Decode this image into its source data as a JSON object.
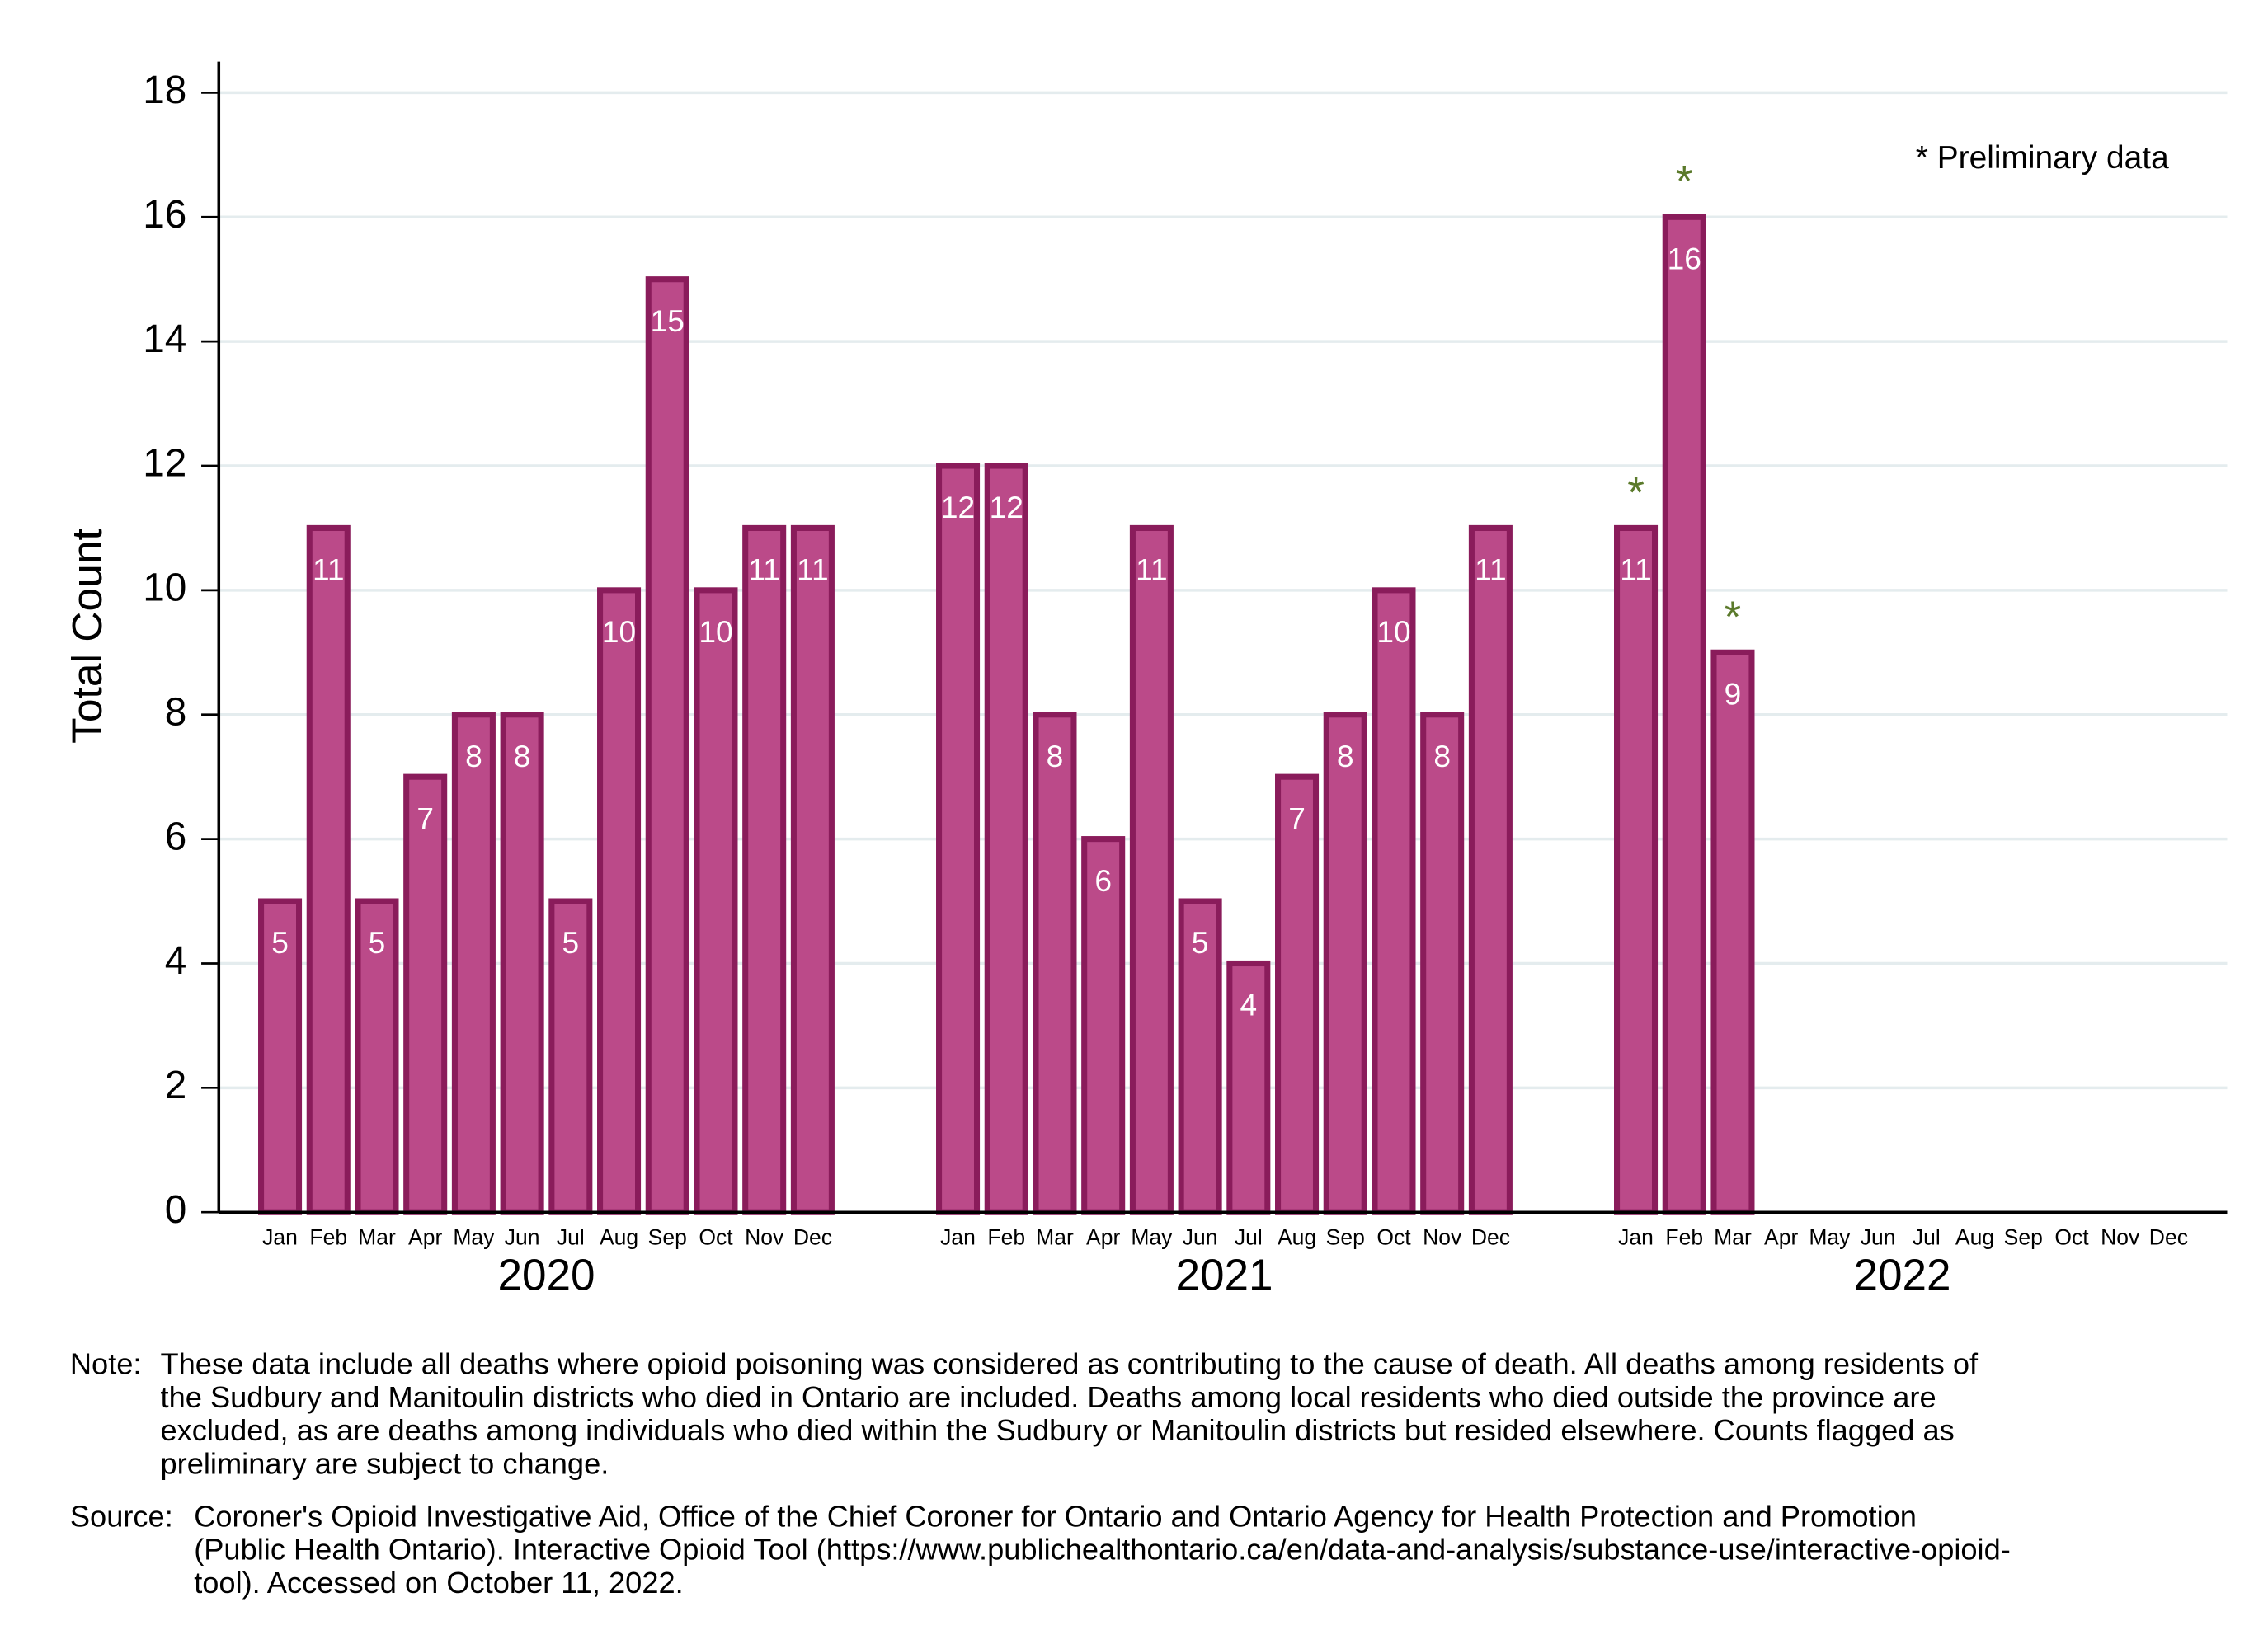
{
  "chart_data": {
    "type": "bar",
    "ylabel": "Total Count",
    "annotation": "* Preliminary data",
    "years": [
      "2020",
      "2021",
      "2022"
    ],
    "categories": [
      "Jan",
      "Feb",
      "Mar",
      "Apr",
      "May",
      "Jun",
      "Jul",
      "Aug",
      "Sep",
      "Oct",
      "Nov",
      "Dec",
      "Jan",
      "Feb",
      "Mar",
      "Apr",
      "May",
      "Jun",
      "Jul",
      "Aug",
      "Sep",
      "Oct",
      "Nov",
      "Dec",
      "Jan",
      "Feb",
      "Mar",
      "Apr",
      "May",
      "Jun",
      "Jul",
      "Aug",
      "Sep",
      "Oct",
      "Nov",
      "Dec"
    ],
    "values": [
      5,
      11,
      5,
      7,
      8,
      8,
      5,
      10,
      15,
      10,
      11,
      11,
      12,
      12,
      8,
      6,
      11,
      5,
      4,
      7,
      8,
      10,
      8,
      11,
      11,
      16,
      9,
      null,
      null,
      null,
      null,
      null,
      null,
      null,
      null,
      null
    ],
    "flags": [
      null,
      null,
      null,
      null,
      null,
      null,
      null,
      null,
      null,
      null,
      null,
      null,
      null,
      null,
      null,
      null,
      null,
      null,
      null,
      null,
      null,
      null,
      null,
      null,
      "*",
      "*",
      "*",
      null,
      null,
      null,
      null,
      null,
      null,
      null,
      null,
      null
    ],
    "color": "#bb4a89",
    "edge_color": "#8a1c5b",
    "flag_color": "#5b7a2b",
    "ylim": [
      0,
      18.5
    ],
    "yticks": [
      0,
      2,
      4,
      6,
      8,
      10,
      12,
      14,
      16,
      18
    ],
    "grid": true
  },
  "notes": [
    {
      "label": "Note:",
      "lines": [
        "These data include all deaths where opioid poisoning was considered as contributing to the cause of death. All deaths among residents of",
        "the Sudbury and Manitoulin districts who died in Ontario are included. Deaths among local residents who died outside the province are",
        "excluded, as are deaths among individuals who died within the Sudbury or Manitoulin districts but resided elsewhere. Counts flagged as",
        "preliminary are subject to change."
      ]
    },
    {
      "label": "Source:",
      "lines": [
        "Coroner's Opioid Investigative Aid, Office of the Chief Coroner for Ontario and Ontario Agency for Health Protection and Promotion",
        "(Public Health Ontario). Interactive Opioid Tool (https://www.publichealthontario.ca/en/data-and-analysis/substance-use/interactive-opioid-",
        "tool). Accessed on October 11, 2022."
      ]
    }
  ]
}
